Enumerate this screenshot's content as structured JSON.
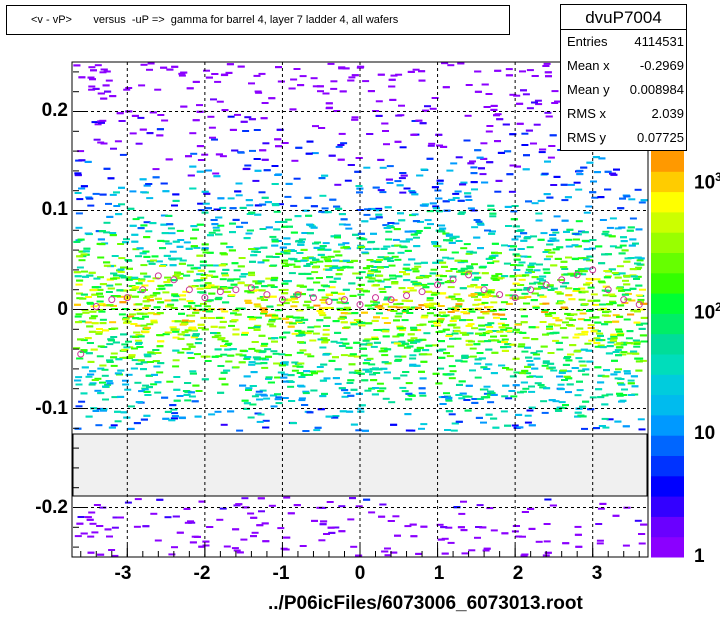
{
  "title": "<v - vP>       versus  -uP =>  gamma for barrel 4, layer 7 ladder 4, all wafers",
  "stats": {
    "name": "dvuP7004",
    "rows": [
      {
        "key": "Entries",
        "value": "4114531"
      },
      {
        "key": "Mean x",
        "value": "-0.2969"
      },
      {
        "key": "Mean y",
        "value": "0.008984"
      },
      {
        "key": "RMS x",
        "value": "2.039"
      },
      {
        "key": "RMS y",
        "value": "0.07725"
      }
    ]
  },
  "footer": "../P06icFiles/6073006_6073013.root",
  "chart_data": {
    "type": "heatmap",
    "title": "<v - vP>       versus  -uP =>  gamma for barrel 4, layer 7 ladder 4, all wafers",
    "xlim": [
      -3.7,
      3.7
    ],
    "ylim": [
      -0.25,
      0.25
    ],
    "x_ticks": [
      "-3",
      "-2",
      "-1",
      "0",
      "1",
      "2",
      "3"
    ],
    "y_ticks": [
      "0.2",
      "0.1",
      "0",
      "-0.1",
      "-0.2"
    ],
    "z_scale": "log",
    "z_tick_labels": [
      "1",
      "10",
      "10",
      "10"
    ],
    "z_tick_exponents": [
      "",
      "",
      "2",
      "3"
    ],
    "gap_band_y": [
      -0.188,
      -0.124
    ],
    "grid": true,
    "profile_means": [
      {
        "x": -3.6,
        "y": -0.045
      },
      {
        "x": -3.4,
        "y": 0.003
      },
      {
        "x": -3.2,
        "y": 0.01
      },
      {
        "x": -3.0,
        "y": 0.012
      },
      {
        "x": -2.8,
        "y": 0.02
      },
      {
        "x": -2.6,
        "y": 0.034
      },
      {
        "x": -2.4,
        "y": 0.03
      },
      {
        "x": -2.2,
        "y": 0.02
      },
      {
        "x": -2.0,
        "y": 0.012
      },
      {
        "x": -1.8,
        "y": 0.018
      },
      {
        "x": -1.6,
        "y": 0.02
      },
      {
        "x": -1.4,
        "y": 0.022
      },
      {
        "x": -1.2,
        "y": 0.015
      },
      {
        "x": -1.0,
        "y": 0.01
      },
      {
        "x": -0.8,
        "y": 0.015
      },
      {
        "x": -0.6,
        "y": 0.012
      },
      {
        "x": -0.4,
        "y": 0.008
      },
      {
        "x": -0.2,
        "y": 0.01
      },
      {
        "x": 0.0,
        "y": 0.005
      },
      {
        "x": 0.2,
        "y": 0.012
      },
      {
        "x": 0.4,
        "y": 0.01
      },
      {
        "x": 0.6,
        "y": 0.014
      },
      {
        "x": 0.8,
        "y": 0.018
      },
      {
        "x": 1.0,
        "y": 0.025
      },
      {
        "x": 1.2,
        "y": 0.03
      },
      {
        "x": 1.4,
        "y": 0.035
      },
      {
        "x": 1.6,
        "y": 0.02
      },
      {
        "x": 1.8,
        "y": 0.015
      },
      {
        "x": 2.0,
        "y": 0.012
      },
      {
        "x": 2.2,
        "y": 0.02
      },
      {
        "x": 2.4,
        "y": 0.025
      },
      {
        "x": 2.6,
        "y": 0.03
      },
      {
        "x": 2.8,
        "y": 0.035
      },
      {
        "x": 3.0,
        "y": 0.04
      },
      {
        "x": 3.2,
        "y": 0.02
      },
      {
        "x": 3.4,
        "y": 0.01
      },
      {
        "x": 3.6,
        "y": 0.005
      }
    ]
  }
}
